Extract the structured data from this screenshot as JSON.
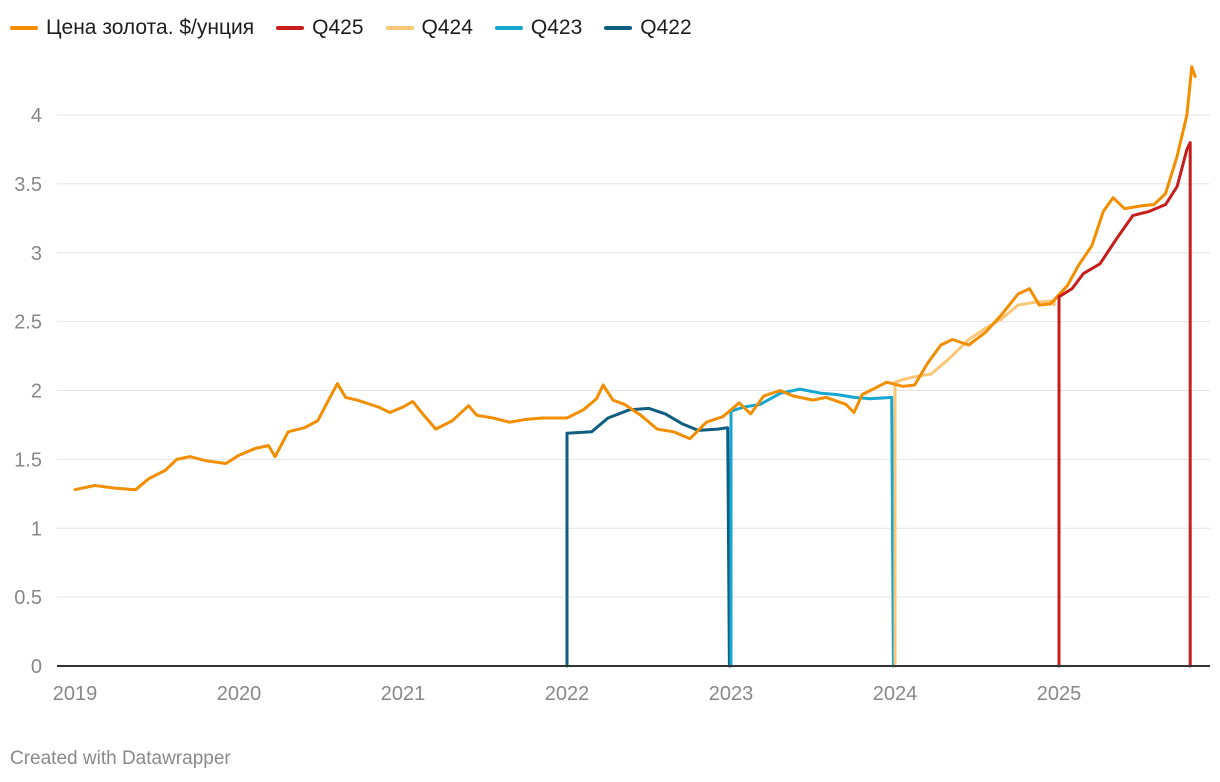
{
  "chart_data": {
    "type": "line",
    "title": "",
    "xlabel": "",
    "ylabel": "",
    "x_start": 2019.0,
    "x_end": 2025.83,
    "ylim": [
      0,
      4.4
    ],
    "y_ticks": [
      0,
      0.5,
      1,
      1.5,
      2,
      2.5,
      3,
      3.5,
      4
    ],
    "y_tick_labels": [
      "0",
      "0.5",
      "1",
      "1.5",
      "2",
      "2.5",
      "3",
      "3.5",
      "4"
    ],
    "x_ticks": [
      2019,
      2020,
      2021,
      2022,
      2023,
      2024,
      2025
    ],
    "x_tick_labels": [
      "2019",
      "2020",
      "2021",
      "2022",
      "2023",
      "2024",
      "2025"
    ],
    "grid": true,
    "legend_position": "top-left",
    "series": [
      {
        "name": "Цена золота. $/унция",
        "color": "#f28e00",
        "points": [
          [
            2019.0,
            1.28
          ],
          [
            2019.12,
            1.31
          ],
          [
            2019.25,
            1.29
          ],
          [
            2019.37,
            1.28
          ],
          [
            2019.45,
            1.36
          ],
          [
            2019.55,
            1.42
          ],
          [
            2019.62,
            1.5
          ],
          [
            2019.7,
            1.52
          ],
          [
            2019.8,
            1.49
          ],
          [
            2019.92,
            1.47
          ],
          [
            2020.0,
            1.53
          ],
          [
            2020.1,
            1.58
          ],
          [
            2020.18,
            1.6
          ],
          [
            2020.22,
            1.52
          ],
          [
            2020.3,
            1.7
          ],
          [
            2020.4,
            1.73
          ],
          [
            2020.48,
            1.78
          ],
          [
            2020.55,
            1.94
          ],
          [
            2020.6,
            2.05
          ],
          [
            2020.65,
            1.95
          ],
          [
            2020.72,
            1.93
          ],
          [
            2020.85,
            1.88
          ],
          [
            2020.92,
            1.84
          ],
          [
            2021.0,
            1.88
          ],
          [
            2021.06,
            1.92
          ],
          [
            2021.12,
            1.83
          ],
          [
            2021.2,
            1.72
          ],
          [
            2021.3,
            1.78
          ],
          [
            2021.4,
            1.89
          ],
          [
            2021.45,
            1.82
          ],
          [
            2021.55,
            1.8
          ],
          [
            2021.65,
            1.77
          ],
          [
            2021.75,
            1.79
          ],
          [
            2021.85,
            1.8
          ],
          [
            2022.0,
            1.8
          ],
          [
            2022.1,
            1.86
          ],
          [
            2022.18,
            1.94
          ],
          [
            2022.22,
            2.04
          ],
          [
            2022.28,
            1.93
          ],
          [
            2022.35,
            1.9
          ],
          [
            2022.45,
            1.82
          ],
          [
            2022.55,
            1.72
          ],
          [
            2022.65,
            1.7
          ],
          [
            2022.75,
            1.65
          ],
          [
            2022.85,
            1.77
          ],
          [
            2022.95,
            1.81
          ],
          [
            2023.05,
            1.91
          ],
          [
            2023.12,
            1.83
          ],
          [
            2023.2,
            1.96
          ],
          [
            2023.3,
            2.0
          ],
          [
            2023.38,
            1.96
          ],
          [
            2023.5,
            1.93
          ],
          [
            2023.58,
            1.95
          ],
          [
            2023.7,
            1.9
          ],
          [
            2023.75,
            1.84
          ],
          [
            2023.8,
            1.97
          ],
          [
            2023.95,
            2.06
          ],
          [
            2024.05,
            2.03
          ],
          [
            2024.12,
            2.04
          ],
          [
            2024.2,
            2.2
          ],
          [
            2024.28,
            2.33
          ],
          [
            2024.35,
            2.37
          ],
          [
            2024.45,
            2.33
          ],
          [
            2024.55,
            2.42
          ],
          [
            2024.65,
            2.55
          ],
          [
            2024.75,
            2.7
          ],
          [
            2024.82,
            2.74
          ],
          [
            2024.88,
            2.62
          ],
          [
            2024.95,
            2.63
          ],
          [
            2025.05,
            2.76
          ],
          [
            2025.12,
            2.91
          ],
          [
            2025.2,
            3.05
          ],
          [
            2025.27,
            3.3
          ],
          [
            2025.33,
            3.4
          ],
          [
            2025.4,
            3.32
          ],
          [
            2025.5,
            3.34
          ],
          [
            2025.58,
            3.35
          ],
          [
            2025.65,
            3.43
          ],
          [
            2025.72,
            3.7
          ],
          [
            2025.78,
            4.0
          ],
          [
            2025.81,
            4.35
          ],
          [
            2025.83,
            4.28
          ]
        ]
      },
      {
        "name": "Q425",
        "color": "#c71e1d",
        "points": [
          [
            2025.0,
            0
          ],
          [
            2025.0,
            2.68
          ],
          [
            2025.08,
            2.74
          ],
          [
            2025.15,
            2.85
          ],
          [
            2025.25,
            2.92
          ],
          [
            2025.35,
            3.1
          ],
          [
            2025.45,
            3.27
          ],
          [
            2025.55,
            3.3
          ],
          [
            2025.65,
            3.35
          ],
          [
            2025.72,
            3.48
          ],
          [
            2025.78,
            3.75
          ],
          [
            2025.8,
            3.8
          ],
          [
            2025.8,
            0
          ]
        ]
      },
      {
        "name": "Q424",
        "color": "#fdc676",
        "points": [
          [
            2024.0,
            0
          ],
          [
            2024.0,
            2.06
          ],
          [
            2024.05,
            2.08
          ],
          [
            2024.12,
            2.1
          ],
          [
            2024.22,
            2.12
          ],
          [
            2024.32,
            2.22
          ],
          [
            2024.45,
            2.37
          ],
          [
            2024.55,
            2.45
          ],
          [
            2024.65,
            2.52
          ],
          [
            2024.75,
            2.62
          ],
          [
            2024.85,
            2.64
          ],
          [
            2024.97,
            2.65
          ],
          [
            2024.97,
            2.62
          ]
        ]
      },
      {
        "name": "Q423",
        "color": "#15a6d1",
        "points": [
          [
            2023.0,
            0
          ],
          [
            2023.0,
            1.85
          ],
          [
            2023.08,
            1.88
          ],
          [
            2023.18,
            1.9
          ],
          [
            2023.3,
            1.98
          ],
          [
            2023.42,
            2.01
          ],
          [
            2023.55,
            1.98
          ],
          [
            2023.65,
            1.97
          ],
          [
            2023.75,
            1.95
          ],
          [
            2023.85,
            1.94
          ],
          [
            2023.98,
            1.95
          ],
          [
            2023.99,
            0
          ]
        ]
      },
      {
        "name": "Q422",
        "color": "#0f5e80",
        "points": [
          [
            2022.0,
            0
          ],
          [
            2022.0,
            1.69
          ],
          [
            2022.15,
            1.7
          ],
          [
            2022.25,
            1.8
          ],
          [
            2022.38,
            1.86
          ],
          [
            2022.5,
            1.87
          ],
          [
            2022.6,
            1.83
          ],
          [
            2022.7,
            1.76
          ],
          [
            2022.8,
            1.71
          ],
          [
            2022.92,
            1.72
          ],
          [
            2022.98,
            1.73
          ],
          [
            2022.99,
            0
          ]
        ]
      }
    ]
  },
  "footer": {
    "credit": "Created with Datawrapper"
  }
}
